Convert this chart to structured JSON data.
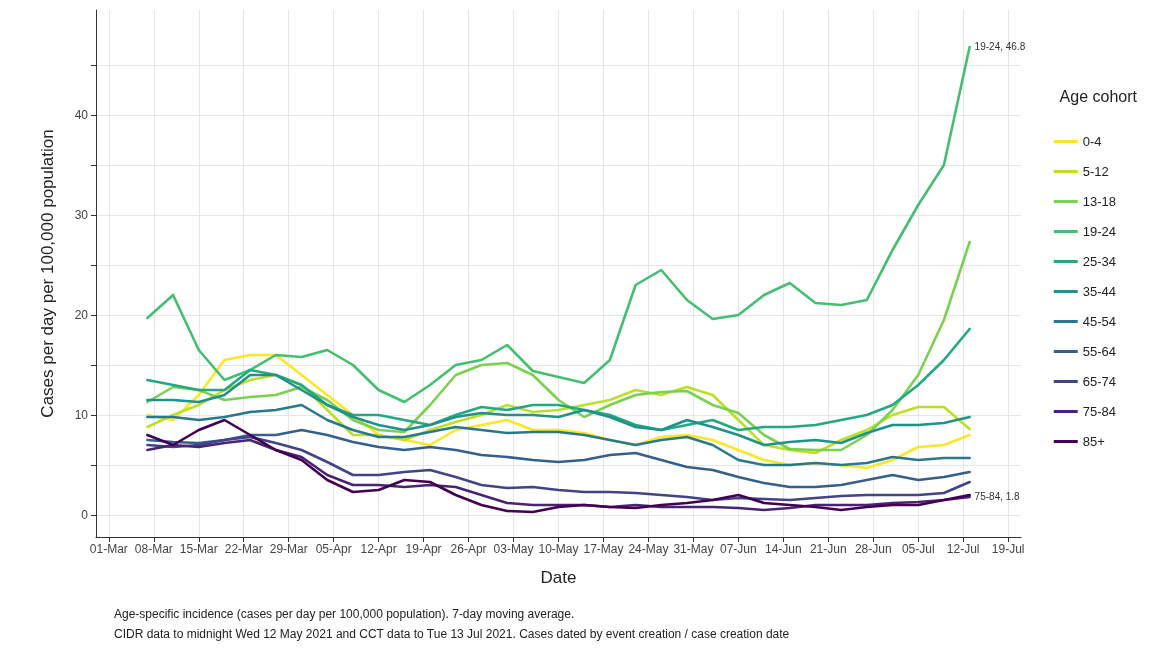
{
  "chart_data": {
    "type": "line",
    "xlabel": "Date",
    "ylabel": "Cases per day per 100,000 population",
    "legend_title": "Age cohort",
    "legend": "right",
    "grid": true,
    "marker": "none",
    "line_style": "solid",
    "x": [
      "2021-03-07",
      "2021-03-11",
      "2021-03-15",
      "2021-03-19",
      "2021-03-23",
      "2021-03-27",
      "2021-03-31",
      "2021-04-04",
      "2021-04-08",
      "2021-04-12",
      "2021-04-16",
      "2021-04-20",
      "2021-04-24",
      "2021-04-28",
      "2021-05-02",
      "2021-05-06",
      "2021-05-10",
      "2021-05-14",
      "2021-05-18",
      "2021-05-22",
      "2021-05-26",
      "2021-05-30",
      "2021-06-03",
      "2021-06-07",
      "2021-06-11",
      "2021-06-15",
      "2021-06-19",
      "2021-06-23",
      "2021-06-27",
      "2021-07-01",
      "2021-07-05",
      "2021-07-09",
      "2021-07-13"
    ],
    "xlim": [
      "2021-02-27",
      "2021-07-21"
    ],
    "xticks": [
      {
        "value": "2021-03-01",
        "label": "01-Mar"
      },
      {
        "value": "2021-03-08",
        "label": "08-Mar"
      },
      {
        "value": "2021-03-15",
        "label": "15-Mar"
      },
      {
        "value": "2021-03-22",
        "label": "22-Mar"
      },
      {
        "value": "2021-03-29",
        "label": "29-Mar"
      },
      {
        "value": "2021-04-05",
        "label": "05-Apr"
      },
      {
        "value": "2021-04-12",
        "label": "12-Apr"
      },
      {
        "value": "2021-04-19",
        "label": "19-Apr"
      },
      {
        "value": "2021-04-26",
        "label": "26-Apr"
      },
      {
        "value": "2021-05-03",
        "label": "03-May"
      },
      {
        "value": "2021-05-10",
        "label": "10-May"
      },
      {
        "value": "2021-05-17",
        "label": "17-May"
      },
      {
        "value": "2021-05-24",
        "label": "24-May"
      },
      {
        "value": "2021-05-31",
        "label": "31-May"
      },
      {
        "value": "2021-06-07",
        "label": "07-Jun"
      },
      {
        "value": "2021-06-14",
        "label": "14-Jun"
      },
      {
        "value": "2021-06-21",
        "label": "21-Jun"
      },
      {
        "value": "2021-06-28",
        "label": "28-Jun"
      },
      {
        "value": "2021-07-05",
        "label": "05-Jul"
      },
      {
        "value": "2021-07-12",
        "label": "12-Jul"
      },
      {
        "value": "2021-07-19",
        "label": "19-Jul"
      }
    ],
    "ylim": [
      -2.2,
      50.5
    ],
    "yticks": [
      0,
      {
        "value": 5,
        "label": null
      },
      10,
      {
        "value": 15,
        "label": null
      },
      20,
      {
        "value": 25,
        "label": null
      },
      30,
      {
        "value": 35,
        "label": null
      },
      40,
      {
        "value": 45,
        "label": null
      }
    ],
    "series": [
      {
        "name": "0-4",
        "color": "#fde725",
        "values": [
          10.0,
          9.5,
          12.0,
          15.5,
          16.0,
          16.0,
          14.0,
          12.0,
          10.0,
          8.0,
          7.5,
          7.0,
          8.5,
          9.0,
          9.5,
          8.5,
          8.5,
          8.2,
          7.5,
          7.0,
          7.8,
          8.0,
          7.5,
          6.5,
          5.5,
          5.0,
          5.2,
          5.0,
          4.7,
          5.5,
          6.8,
          7.0,
          8.0
        ]
      },
      {
        "name": "5-12",
        "color": "#bddf26",
        "values": [
          8.8,
          10.0,
          11.0,
          12.5,
          13.5,
          14.0,
          13.0,
          10.5,
          8.0,
          8.0,
          7.5,
          8.5,
          9.3,
          10.0,
          11.0,
          10.3,
          10.5,
          11.0,
          11.5,
          12.5,
          12.0,
          12.8,
          12.0,
          9.5,
          7.0,
          6.5,
          6.2,
          7.5,
          8.5,
          10.0,
          10.8,
          10.8,
          8.6
        ]
      },
      {
        "name": "13-18",
        "color": "#7ad151",
        "values": [
          11.3,
          12.8,
          12.5,
          11.5,
          11.8,
          12.0,
          12.8,
          11.5,
          9.5,
          8.5,
          8.3,
          11.0,
          14.0,
          15.0,
          15.2,
          14.0,
          11.5,
          9.8,
          11.0,
          12.0,
          12.3,
          12.4,
          11.0,
          10.2,
          8.0,
          6.6,
          6.5,
          6.5,
          8.0,
          10.5,
          14.0,
          19.5,
          27.3
        ]
      },
      {
        "name": "19-24",
        "color": "#44bf70",
        "values": [
          19.7,
          22.0,
          16.5,
          13.5,
          14.5,
          16.0,
          15.8,
          16.5,
          15.0,
          12.5,
          11.3,
          13.0,
          15.0,
          15.5,
          17.0,
          14.4,
          13.8,
          13.2,
          15.5,
          23.0,
          24.5,
          21.5,
          19.6,
          20.0,
          22.0,
          23.2,
          21.2,
          21.0,
          21.5,
          26.5,
          31.0,
          35.0,
          46.8
        ]
      },
      {
        "name": "25-34",
        "color": "#22a884",
        "values": [
          13.5,
          13.0,
          12.5,
          12.5,
          14.5,
          14.0,
          13.0,
          11.0,
          10.0,
          10.0,
          9.5,
          9.0,
          10.0,
          10.8,
          10.5,
          11.0,
          11.0,
          10.5,
          10.0,
          9.0,
          8.5,
          9.0,
          9.5,
          8.5,
          8.8,
          8.8,
          9.0,
          9.5,
          10.0,
          11.0,
          13.0,
          15.5,
          18.6
        ]
      },
      {
        "name": "35-44",
        "color": "#21918c",
        "values": [
          11.5,
          11.5,
          11.3,
          12.0,
          14.0,
          14.0,
          12.5,
          11.0,
          9.8,
          9.0,
          8.5,
          9.0,
          9.8,
          10.2,
          10.0,
          10.0,
          9.8,
          10.5,
          9.8,
          8.8,
          8.5,
          9.5,
          8.8,
          8.0,
          7.0,
          7.3,
          7.5,
          7.2,
          8.2,
          9.0,
          9.0,
          9.2,
          9.8
        ]
      },
      {
        "name": "45-54",
        "color": "#2a788e",
        "values": [
          9.8,
          9.8,
          9.5,
          9.8,
          10.3,
          10.5,
          11.0,
          9.5,
          8.5,
          7.8,
          7.8,
          8.3,
          8.8,
          8.5,
          8.2,
          8.3,
          8.3,
          8.0,
          7.5,
          7.0,
          7.5,
          7.8,
          7.0,
          5.5,
          5.0,
          5.0,
          5.2,
          5.0,
          5.2,
          5.8,
          5.5,
          5.7,
          5.7
        ]
      },
      {
        "name": "55-64",
        "color": "#355f8d",
        "values": [
          7.5,
          7.3,
          7.2,
          7.5,
          8.0,
          8.0,
          8.5,
          8.0,
          7.3,
          6.8,
          6.5,
          6.8,
          6.5,
          6.0,
          5.8,
          5.5,
          5.3,
          5.5,
          6.0,
          6.2,
          5.5,
          4.8,
          4.5,
          3.8,
          3.2,
          2.8,
          2.8,
          3.0,
          3.5,
          4.0,
          3.5,
          3.8,
          4.3
        ]
      },
      {
        "name": "65-74",
        "color": "#414487",
        "values": [
          7.0,
          6.8,
          7.0,
          7.5,
          7.8,
          7.2,
          6.5,
          5.3,
          4.0,
          4.0,
          4.3,
          4.5,
          3.8,
          3.0,
          2.7,
          2.8,
          2.5,
          2.3,
          2.3,
          2.2,
          2.0,
          1.8,
          1.5,
          1.7,
          1.6,
          1.5,
          1.7,
          1.9,
          2.0,
          2.0,
          2.0,
          2.2,
          3.3
        ]
      },
      {
        "name": "75-84",
        "color": "#482475",
        "values": [
          6.5,
          7.0,
          6.8,
          7.2,
          7.5,
          6.5,
          5.8,
          4.0,
          3.0,
          3.0,
          2.8,
          3.0,
          2.8,
          2.0,
          1.2,
          1.0,
          1.0,
          1.0,
          0.8,
          1.0,
          0.8,
          0.8,
          0.8,
          0.7,
          0.5,
          0.7,
          1.0,
          1.0,
          1.0,
          1.2,
          1.3,
          1.5,
          1.8
        ]
      },
      {
        "name": "85+",
        "color": "#440154",
        "values": [
          8.0,
          7.0,
          8.5,
          9.5,
          8.0,
          6.5,
          5.5,
          3.5,
          2.3,
          2.5,
          3.5,
          3.3,
          2.0,
          1.0,
          0.4,
          0.3,
          0.8,
          1.0,
          0.8,
          0.7,
          1.0,
          1.2,
          1.5,
          2.0,
          1.2,
          1.0,
          0.8,
          0.5,
          0.8,
          1.0,
          1.0,
          1.5,
          2.0
        ]
      }
    ],
    "annotations": [
      {
        "text": "19-24, 46.8",
        "x": "2021-07-13",
        "y": 46.8
      },
      {
        "text": "75-84, 1.8",
        "x": "2021-07-13",
        "y": 1.8
      },
      "Age-specific incidence (cases per day per 100,000 population). 7-day moving average.",
      "CIDR data to midnight Wed 12 May 2021 and CCT data to Tue 13 Jul 2021. Cases dated by event creation / case creation date"
    ]
  }
}
